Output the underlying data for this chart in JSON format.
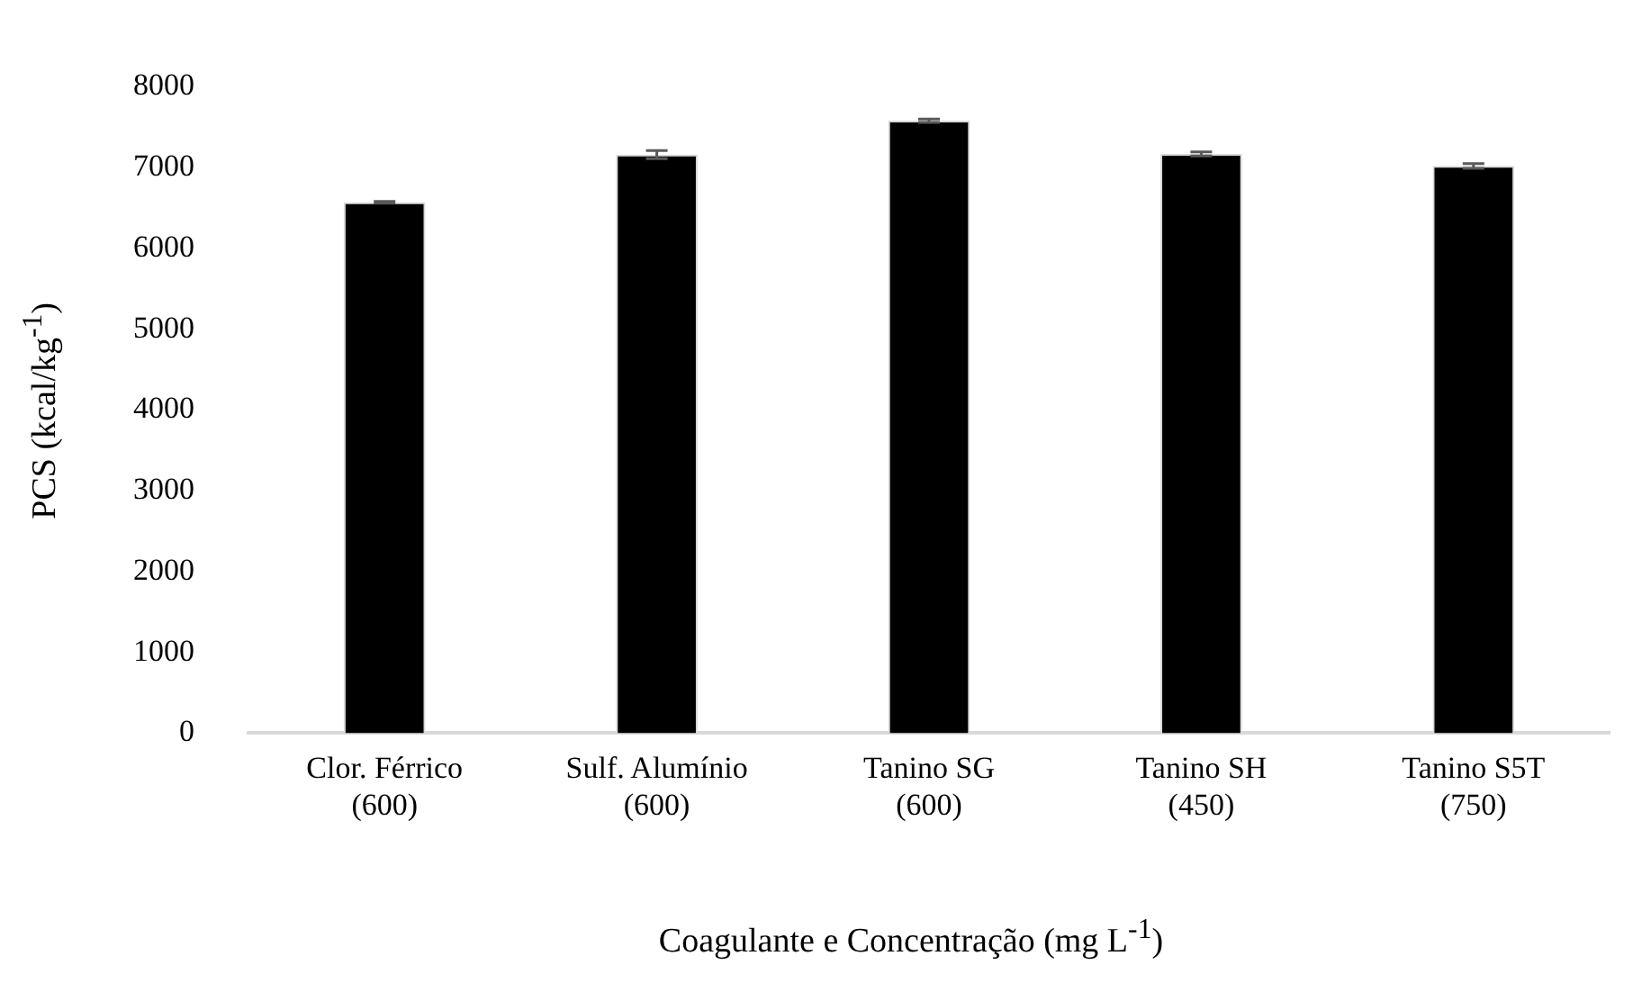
{
  "chart_data": {
    "type": "bar",
    "xlabel": "Coagulante e Concentração (mg L$^{-1}$)",
    "ylabel": "PCS (kcal/kg$^{-1}$)",
    "categories": [
      "Clor. Férrico\n(600)",
      "Sulf. Alumínio\n(600)",
      "Tanino SG\n(600)",
      "Tanino SH\n(450)",
      "Tanino S5T\n(750)"
    ],
    "values": [
      6570,
      7160,
      7580,
      7170,
      7020
    ],
    "errors": [
      10,
      50,
      20,
      25,
      30
    ],
    "color": "#000000",
    "ylim": [
      0,
      8000
    ],
    "yticks": [
      0,
      1000,
      2000,
      3000,
      4000,
      5000,
      6000,
      7000,
      8000
    ],
    "grid": false,
    "legend": false
  }
}
